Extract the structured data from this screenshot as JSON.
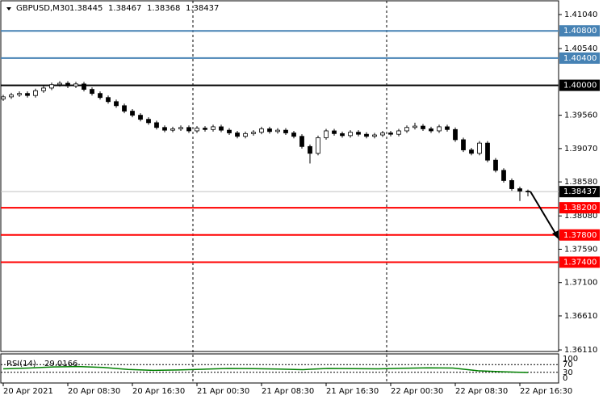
{
  "chart_data": {
    "type": "candlestick",
    "symbol": "GBPUSD,M30",
    "open": [
      1.398,
      1.3983,
      1.3986,
      1.3988,
      1.3985,
      1.3992,
      1.3996,
      1.4001,
      1.4003,
      1.3999,
      1.4002,
      1.3994,
      1.3988,
      1.3982,
      1.3976,
      1.397,
      1.3962,
      1.3956,
      1.395,
      1.3945,
      1.3938,
      1.3934,
      1.3936,
      1.3938,
      1.3933,
      1.3937,
      1.3935,
      1.3939,
      1.3934,
      1.393,
      1.3925,
      1.3929,
      1.3931,
      1.3936,
      1.3932,
      1.3934,
      1.393,
      1.3925,
      1.391,
      1.39,
      1.3923,
      1.3933,
      1.3929,
      1.3926,
      1.3931,
      1.3928,
      1.3925,
      1.3927,
      1.393,
      1.3928,
      1.3933,
      1.3938,
      1.394,
      1.3936,
      1.3933,
      1.3939,
      1.3935,
      1.392,
      1.3905,
      1.39,
      1.3915,
      1.389,
      1.3875,
      1.386,
      1.3848,
      1.38445
    ],
    "high": [
      1.3986,
      1.3989,
      1.3991,
      1.3991,
      1.3995,
      1.3999,
      1.4004,
      1.4006,
      1.4006,
      1.4005,
      1.4005,
      1.3997,
      1.3991,
      1.3985,
      1.3979,
      1.3973,
      1.3965,
      1.3959,
      1.3953,
      1.3948,
      1.3941,
      1.3939,
      1.3941,
      1.3941,
      1.394,
      1.394,
      1.3942,
      1.3942,
      1.3937,
      1.3933,
      1.3932,
      1.3934,
      1.3939,
      1.3939,
      1.3937,
      1.3937,
      1.3933,
      1.3928,
      1.3913,
      1.3926,
      1.3936,
      1.3936,
      1.3932,
      1.3934,
      1.3934,
      1.3931,
      1.393,
      1.3933,
      1.3933,
      1.3936,
      1.3941,
      1.3945,
      1.3943,
      1.3939,
      1.3942,
      1.3942,
      1.3938,
      1.3923,
      1.3908,
      1.3918,
      1.3918,
      1.3893,
      1.3878,
      1.3863,
      1.3851,
      1.38467
    ],
    "low": [
      1.3977,
      1.398,
      1.3983,
      1.3982,
      1.3982,
      1.3989,
      1.3993,
      1.3998,
      1.3996,
      1.3996,
      1.3991,
      1.3985,
      1.3979,
      1.3973,
      1.3967,
      1.3959,
      1.3953,
      1.3947,
      1.3942,
      1.3935,
      1.3931,
      1.3931,
      1.3933,
      1.393,
      1.393,
      1.3932,
      1.3932,
      1.3931,
      1.3927,
      1.3922,
      1.3922,
      1.3926,
      1.3928,
      1.3929,
      1.3929,
      1.3927,
      1.3922,
      1.3907,
      1.3885,
      1.3897,
      1.392,
      1.3926,
      1.3923,
      1.3923,
      1.3925,
      1.3922,
      1.3922,
      1.3924,
      1.3925,
      1.3925,
      1.393,
      1.3935,
      1.3933,
      1.393,
      1.393,
      1.3932,
      1.3917,
      1.3902,
      1.3897,
      1.3897,
      1.3887,
      1.3872,
      1.3857,
      1.3845,
      1.383,
      1.38368
    ],
    "close": [
      1.3983,
      1.3986,
      1.3988,
      1.3985,
      1.3992,
      1.3996,
      1.4001,
      1.4003,
      1.3999,
      1.4002,
      1.3994,
      1.3988,
      1.3982,
      1.3976,
      1.397,
      1.3962,
      1.3956,
      1.395,
      1.3945,
      1.3938,
      1.3934,
      1.3936,
      1.3938,
      1.3933,
      1.3937,
      1.3935,
      1.3939,
      1.3934,
      1.393,
      1.3925,
      1.3929,
      1.3931,
      1.3936,
      1.3932,
      1.3934,
      1.393,
      1.3925,
      1.391,
      1.39,
      1.3923,
      1.3933,
      1.3929,
      1.3926,
      1.3931,
      1.3928,
      1.3925,
      1.3927,
      1.393,
      1.3928,
      1.3933,
      1.3938,
      1.394,
      1.3936,
      1.3933,
      1.3939,
      1.3935,
      1.392,
      1.3905,
      1.39,
      1.3915,
      1.389,
      1.3875,
      1.386,
      1.3848,
      1.38445,
      1.38437
    ],
    "categories": [
      "20 Apr 2021",
      null,
      null,
      null,
      null,
      null,
      null,
      null,
      "20 Apr 08:30",
      null,
      null,
      null,
      null,
      null,
      null,
      null,
      "20 Apr 16:30",
      null,
      null,
      null,
      null,
      null,
      null,
      null,
      "21 Apr 00:30",
      null,
      null,
      null,
      null,
      null,
      null,
      null,
      "21 Apr 08:30",
      null,
      null,
      null,
      null,
      null,
      null,
      null,
      "21 Apr 16:30",
      null,
      null,
      null,
      null,
      null,
      null,
      null,
      "22 Apr 00:30",
      null,
      null,
      null,
      null,
      null,
      null,
      null,
      "22 Apr 08:30",
      null,
      null,
      null,
      null,
      null,
      null,
      null,
      "22 Apr 16:30",
      null
    ],
    "ylim": [
      1.36087,
      1.41254
    ],
    "yticks": [
      {
        "value": 1.4104,
        "label": "1.41040"
      },
      {
        "value": 1.4054,
        "label": "1.40540"
      },
      {
        "value": 1.3956,
        "label": "1.39560"
      },
      {
        "value": 1.3907,
        "label": "1.39070"
      },
      {
        "value": 1.3858,
        "label": "1.38580"
      },
      {
        "value": 1.3808,
        "label": "1.38080"
      },
      {
        "value": 1.3759,
        "label": "1.37590"
      },
      {
        "value": 1.371,
        "label": "1.37100"
      },
      {
        "value": 1.3661,
        "label": "1.36610"
      },
      {
        "value": 1.3611,
        "label": "1.36110"
      }
    ],
    "levels": [
      {
        "value": 1.408,
        "label": "1.40800",
        "color": "#4682b4"
      },
      {
        "value": 1.404,
        "label": "1.40400",
        "color": "#4682b4"
      },
      {
        "value": 1.4,
        "label": "1.40000",
        "color": "#000000"
      },
      {
        "value": 1.382,
        "label": "1.38200",
        "color": "#ff0000"
      },
      {
        "value": 1.378,
        "label": "1.37800",
        "color": "#ff0000"
      },
      {
        "value": 1.374,
        "label": "1.37400",
        "color": "#ff0000"
      }
    ],
    "rsi": {
      "name": "RSI(14)",
      "color": "#008000",
      "values": [
        48,
        52,
        58,
        60,
        55,
        45,
        40,
        42,
        46,
        50,
        49,
        47,
        44,
        50,
        49,
        48,
        51,
        53,
        52,
        38,
        33,
        29.0166
      ],
      "ylim": [
        0,
        100
      ],
      "yticks": [
        100,
        70,
        30,
        0
      ]
    }
  }
}
